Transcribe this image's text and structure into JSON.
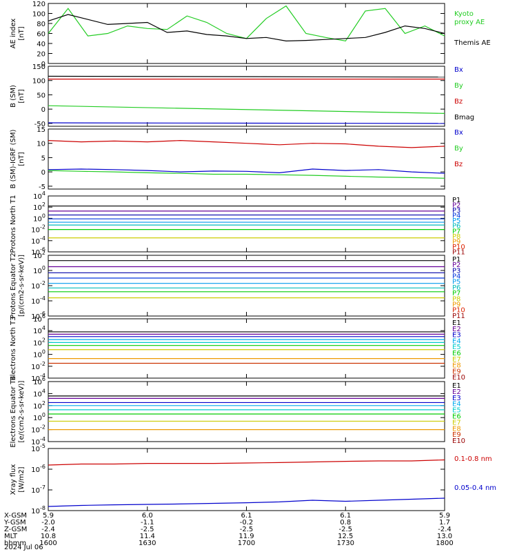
{
  "colors": {
    "black": "#000000",
    "green": "#22cc22",
    "red": "#cc0000",
    "blue": "#0000cc",
    "P": [
      "#000000",
      "#660099",
      "#0000aa",
      "#0033dd",
      "#0099ee",
      "#00bbbb",
      "#00cc00",
      "#cccc00",
      "#ee9900",
      "#dd2200",
      "#990000"
    ],
    "E": [
      "#000000",
      "#660099",
      "#0000cc",
      "#00aaee",
      "#00cccc",
      "#00cc00",
      "#cccc00",
      "#ee9900",
      "#cc3300",
      "#990000"
    ]
  },
  "xaxis": {
    "ticks": [
      "1600",
      "1630",
      "1700",
      "1730",
      "1800"
    ],
    "rows": [
      {
        "label": "X-GSM",
        "values": [
          "5.9",
          "6.0",
          "6.1",
          "6.1",
          "5.9"
        ]
      },
      {
        "label": "Y-GSM",
        "values": [
          "-2.0",
          "-1.1",
          "-0.2",
          "0.8",
          "1.7"
        ]
      },
      {
        "label": "Z-GSM",
        "values": [
          "-2.4",
          "-2.5",
          "-2.5",
          "-2.5",
          "-2.4"
        ]
      },
      {
        "label": "MLT",
        "values": [
          "10.8",
          "11.4",
          "11.9",
          "12.5",
          "13.0"
        ]
      },
      {
        "label": "hhmm",
        "values": [
          "1600",
          "1630",
          "1700",
          "1730",
          "1800"
        ]
      }
    ],
    "date": "2024 Jul 06"
  },
  "chart_data": [
    {
      "type": "line",
      "ylabel": "AE index [nT]",
      "ylim": [
        0,
        120
      ],
      "yticks": [
        "0",
        "20",
        "40",
        "60",
        "80",
        "100",
        "120"
      ],
      "x": [
        0,
        6,
        12,
        18,
        24,
        30,
        36,
        42,
        48,
        54,
        60,
        66,
        72,
        78,
        84,
        90,
        96,
        102,
        108,
        114,
        120
      ],
      "series": [
        {
          "name": "Kyoto proxy AE",
          "color": "green",
          "values": [
            60,
            110,
            55,
            60,
            75,
            70,
            68,
            95,
            82,
            60,
            50,
            90,
            115,
            60,
            52,
            45,
            105,
            110,
            60,
            75,
            55
          ]
        },
        {
          "name": "Themis AE",
          "color": "black",
          "values": [
            85,
            98,
            88,
            78,
            80,
            82,
            62,
            65,
            58,
            55,
            50,
            52,
            45,
            46,
            48,
            50,
            52,
            62,
            75,
            70,
            60
          ]
        }
      ]
    },
    {
      "type": "line",
      "ylabel": "B (SM) [nT]",
      "ylim": [
        -60,
        150
      ],
      "yticks": [
        "-50",
        "0",
        "50",
        "100",
        "150"
      ],
      "x": [
        0,
        120
      ],
      "series": [
        {
          "name": "Bx",
          "color": "blue",
          "values": [
            -48,
            -50
          ]
        },
        {
          "name": "By",
          "color": "green",
          "values": [
            12,
            -15
          ]
        },
        {
          "name": "Bz",
          "color": "red",
          "values": [
            105,
            105
          ]
        },
        {
          "name": "Bmag",
          "color": "black",
          "values": [
            115,
            112
          ]
        }
      ]
    },
    {
      "type": "line",
      "ylabel": "B (SM)-IGRF (SM) [nT]",
      "ylim": [
        -6,
        15
      ],
      "yticks": [
        "-5",
        "0",
        "5",
        "10",
        "15"
      ],
      "x": [
        0,
        10,
        20,
        30,
        40,
        50,
        60,
        70,
        80,
        90,
        100,
        110,
        120
      ],
      "series": [
        {
          "name": "Bx",
          "color": "blue",
          "values": [
            0.8,
            1,
            0.8,
            0.5,
            0,
            0.3,
            0.2,
            -0.3,
            1,
            0.5,
            0.8,
            0,
            -0.5
          ]
        },
        {
          "name": "By",
          "color": "green",
          "values": [
            0.5,
            0.2,
            0,
            -0.3,
            -0.5,
            -0.8,
            -0.8,
            -1,
            -1.2,
            -1.5,
            -1.8,
            -2,
            -2.2
          ]
        },
        {
          "name": "Bz",
          "color": "red",
          "values": [
            11,
            10.5,
            10.8,
            10.5,
            11,
            10.5,
            10,
            9.5,
            10,
            9.8,
            9,
            8.5,
            9
          ]
        }
      ]
    },
    {
      "type": "line",
      "ylabel": "Protons North T1",
      "ylim": [
        -6,
        4
      ],
      "log": true,
      "yticks": [
        "10^-6",
        "10^-4",
        "10^-2",
        "10^0",
        "10^2",
        "10^4"
      ],
      "legend": [
        "P1",
        "P2",
        "P3",
        "P4",
        "P5",
        "P6",
        "P7",
        "P8",
        "P9",
        "P10",
        "P11"
      ],
      "levels": [
        2.2,
        1.3,
        0.6,
        -0.1,
        -0.7,
        -1.2,
        -2.0,
        -3.5
      ]
    },
    {
      "type": "line",
      "ylabel": "Protons Equator T2 [p/(cm2-s-sr-keV)]",
      "ylim": [
        -6,
        2
      ],
      "log": true,
      "yticks": [
        "10^-6",
        "10^-4",
        "10^-2",
        "10^0",
        "10^2"
      ],
      "legend": [
        "P1",
        "P2",
        "P3",
        "P4",
        "P5",
        "P6",
        "P7",
        "P8",
        "P9",
        "P10",
        "P11"
      ],
      "levels": [
        1.3,
        0.5,
        -0.3,
        -1.0,
        -1.7,
        -2.3,
        -2.8,
        -3.6
      ]
    },
    {
      "type": "line",
      "ylabel": "Electrons North T3",
      "ylim": [
        -4,
        6
      ],
      "log": true,
      "yticks": [
        "10^-4",
        "10^-2",
        "10^0",
        "10^2",
        "10^4",
        "10^6"
      ],
      "legend": [
        "E1",
        "E2",
        "E3",
        "E4",
        "E5",
        "E6",
        "E7",
        "E8",
        "E9",
        "E10"
      ],
      "levels": [
        3.8,
        3.4,
        3.0,
        2.5,
        2.0,
        1.5,
        0.8,
        -0.7,
        -1.5
      ]
    },
    {
      "type": "line",
      "ylabel": "Electrons Equator T4 [e/(cm2-s-sr-keV)]",
      "ylim": [
        -4,
        6
      ],
      "log": true,
      "yticks": [
        "10^-4",
        "10^-2",
        "10^0",
        "10^2",
        "10^4",
        "10^6"
      ],
      "legend": [
        "E1",
        "E2",
        "E3",
        "E4",
        "E5",
        "E6",
        "E7",
        "E8",
        "E9",
        "E10"
      ],
      "levels": [
        3.6,
        3.2,
        2.5,
        2.0,
        1.3,
        0.6,
        -0.6,
        -2.0
      ]
    },
    {
      "type": "line",
      "ylabel": "Xray flux [W/m2]",
      "ylim": [
        -8,
        -5
      ],
      "log": true,
      "yticks": [
        "10^-8",
        "10^-7",
        "10^-6",
        "10^-5"
      ],
      "x": [
        0,
        10,
        20,
        30,
        40,
        50,
        60,
        70,
        80,
        90,
        100,
        110,
        120
      ],
      "series": [
        {
          "name": "0.1-0.8 nm",
          "color": "red",
          "values": [
            -5.8,
            -5.75,
            -5.75,
            -5.72,
            -5.72,
            -5.72,
            -5.7,
            -5.68,
            -5.65,
            -5.62,
            -5.6,
            -5.6,
            -5.55
          ]
        },
        {
          "name": "0.05-0.4 nm",
          "color": "blue",
          "values": [
            -7.8,
            -7.75,
            -7.72,
            -7.7,
            -7.68,
            -7.65,
            -7.62,
            -7.58,
            -7.5,
            -7.55,
            -7.5,
            -7.45,
            -7.4
          ]
        }
      ]
    }
  ]
}
